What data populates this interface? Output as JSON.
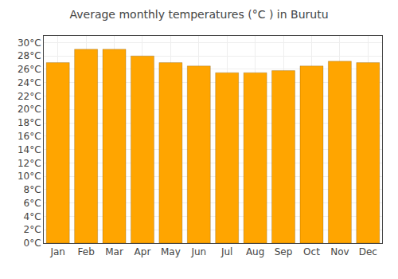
{
  "chart_data": {
    "type": "bar",
    "title": "Average monthly temperatures (°C ) in Burutu",
    "categories": [
      "Jan",
      "Feb",
      "Mar",
      "Apr",
      "May",
      "Jun",
      "Jul",
      "Aug",
      "Sep",
      "Oct",
      "Nov",
      "Dec"
    ],
    "values": [
      27.0,
      29.0,
      29.0,
      28.0,
      27.0,
      26.5,
      25.5,
      25.5,
      25.8,
      26.5,
      27.2,
      27.0
    ],
    "color": "#FFA500",
    "ylim": [
      0,
      31
    ],
    "yticks": [
      {
        "value": 0,
        "label": "0°C"
      },
      {
        "value": 2,
        "label": "2°C"
      },
      {
        "value": 4,
        "label": "4°C"
      },
      {
        "value": 6,
        "label": "6°C"
      },
      {
        "value": 8,
        "label": "8°C"
      },
      {
        "value": 10,
        "label": "10°C"
      },
      {
        "value": 12,
        "label": "12°C"
      },
      {
        "value": 14,
        "label": "14°C"
      },
      {
        "value": 16,
        "label": "16°C"
      },
      {
        "value": 18,
        "label": "18°C"
      },
      {
        "value": 20,
        "label": "20°C"
      },
      {
        "value": 22,
        "label": "22°C"
      },
      {
        "value": 24,
        "label": "24°C"
      },
      {
        "value": 26,
        "label": "26°C"
      },
      {
        "value": 28,
        "label": "28°C"
      },
      {
        "value": 30,
        "label": "30°C"
      }
    ],
    "grid": true
  }
}
